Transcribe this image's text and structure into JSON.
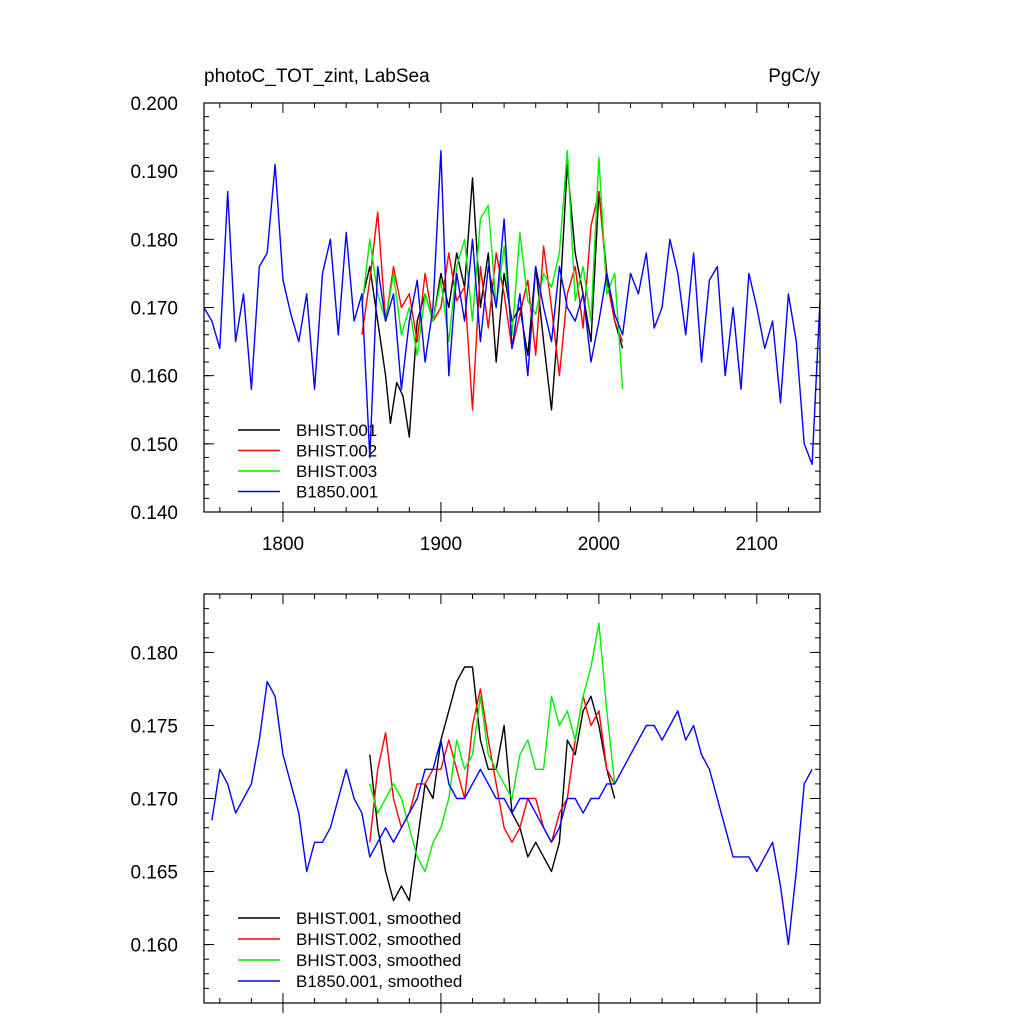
{
  "chart_data": [
    {
      "type": "line",
      "title": "photoC_TOT_zint, LabSea",
      "units": "PgC/y",
      "xlim": [
        1750,
        2140
      ],
      "ylim": [
        0.14,
        0.2
      ],
      "x_ticks": [
        1800,
        1900,
        2000,
        2100
      ],
      "y_ticks": [
        0.14,
        0.15,
        0.16,
        0.17,
        0.18,
        0.19,
        0.2
      ],
      "x_tick_labels": [
        "1800",
        "1900",
        "2000",
        "2100"
      ],
      "y_tick_labels": [
        "0.140",
        "0.150",
        "0.160",
        "0.170",
        "0.180",
        "0.190",
        "0.200"
      ],
      "legend_position": "bottom-left",
      "series": [
        {
          "name": "BHIST.001",
          "color": "#000000",
          "x": [
            1850,
            1855,
            1860,
            1865,
            1868,
            1872,
            1876,
            1880,
            1885,
            1890,
            1895,
            1900,
            1905,
            1910,
            1915,
            1920,
            1925,
            1930,
            1935,
            1940,
            1945,
            1950,
            1955,
            1960,
            1965,
            1970,
            1975,
            1980,
            1985,
            1990,
            1995,
            2000,
            2005,
            2010,
            2015
          ],
          "y": [
            0.171,
            0.176,
            0.168,
            0.16,
            0.153,
            0.159,
            0.157,
            0.151,
            0.168,
            0.172,
            0.168,
            0.175,
            0.17,
            0.178,
            0.173,
            0.189,
            0.17,
            0.178,
            0.162,
            0.175,
            0.168,
            0.17,
            0.163,
            0.176,
            0.165,
            0.155,
            0.17,
            0.191,
            0.178,
            0.172,
            0.165,
            0.187,
            0.175,
            0.168,
            0.164
          ]
        },
        {
          "name": "BHIST.002",
          "color": "#ff0000",
          "x": [
            1850,
            1855,
            1860,
            1865,
            1870,
            1875,
            1880,
            1885,
            1890,
            1895,
            1900,
            1905,
            1910,
            1915,
            1920,
            1925,
            1930,
            1935,
            1940,
            1945,
            1950,
            1955,
            1960,
            1965,
            1970,
            1975,
            1980,
            1985,
            1990,
            1995,
            2000,
            2005,
            2010,
            2015
          ],
          "y": [
            0.166,
            0.174,
            0.184,
            0.168,
            0.176,
            0.17,
            0.172,
            0.165,
            0.175,
            0.168,
            0.17,
            0.178,
            0.171,
            0.173,
            0.155,
            0.176,
            0.167,
            0.178,
            0.172,
            0.164,
            0.169,
            0.174,
            0.163,
            0.179,
            0.17,
            0.16,
            0.172,
            0.176,
            0.167,
            0.182,
            0.187,
            0.174,
            0.168,
            0.165
          ]
        },
        {
          "name": "BHIST.003",
          "color": "#00ee00",
          "x": [
            1850,
            1855,
            1860,
            1865,
            1870,
            1875,
            1880,
            1885,
            1890,
            1895,
            1900,
            1905,
            1910,
            1915,
            1920,
            1925,
            1930,
            1935,
            1940,
            1945,
            1950,
            1955,
            1960,
            1965,
            1970,
            1975,
            1980,
            1985,
            1990,
            1995,
            2000,
            2005,
            2010,
            2015
          ],
          "y": [
            0.17,
            0.18,
            0.172,
            0.168,
            0.175,
            0.166,
            0.17,
            0.163,
            0.172,
            0.168,
            0.174,
            0.165,
            0.176,
            0.18,
            0.168,
            0.183,
            0.185,
            0.17,
            0.179,
            0.166,
            0.181,
            0.171,
            0.169,
            0.175,
            0.173,
            0.178,
            0.193,
            0.171,
            0.176,
            0.168,
            0.192,
            0.172,
            0.175,
            0.158
          ]
        },
        {
          "name": "B1850.001",
          "color": "#0000ff",
          "x": [
            1750,
            1755,
            1760,
            1765,
            1770,
            1775,
            1780,
            1785,
            1790,
            1795,
            1800,
            1805,
            1810,
            1815,
            1820,
            1825,
            1830,
            1835,
            1840,
            1845,
            1850,
            1855,
            1860,
            1865,
            1870,
            1875,
            1880,
            1885,
            1890,
            1895,
            1900,
            1905,
            1910,
            1915,
            1920,
            1925,
            1930,
            1935,
            1940,
            1945,
            1950,
            1955,
            1960,
            1965,
            1970,
            1975,
            1980,
            1985,
            1990,
            1995,
            2000,
            2005,
            2010,
            2015,
            2020,
            2025,
            2030,
            2035,
            2040,
            2045,
            2050,
            2055,
            2060,
            2065,
            2070,
            2075,
            2080,
            2085,
            2090,
            2095,
            2100,
            2105,
            2110,
            2115,
            2120,
            2125,
            2130,
            2135,
            2140
          ],
          "y": [
            0.17,
            0.168,
            0.164,
            0.187,
            0.165,
            0.172,
            0.158,
            0.176,
            0.178,
            0.191,
            0.174,
            0.169,
            0.165,
            0.172,
            0.158,
            0.175,
            0.18,
            0.166,
            0.181,
            0.168,
            0.172,
            0.148,
            0.176,
            0.168,
            0.172,
            0.158,
            0.168,
            0.174,
            0.162,
            0.17,
            0.193,
            0.16,
            0.175,
            0.168,
            0.18,
            0.165,
            0.176,
            0.17,
            0.183,
            0.164,
            0.172,
            0.16,
            0.176,
            0.17,
            0.165,
            0.176,
            0.17,
            0.168,
            0.172,
            0.162,
            0.168,
            0.175,
            0.169,
            0.166,
            0.175,
            0.172,
            0.178,
            0.167,
            0.17,
            0.18,
            0.175,
            0.166,
            0.178,
            0.162,
            0.174,
            0.176,
            0.16,
            0.17,
            0.158,
            0.175,
            0.17,
            0.164,
            0.168,
            0.156,
            0.172,
            0.165,
            0.15,
            0.147,
            0.171
          ]
        }
      ]
    },
    {
      "type": "line",
      "xlim": [
        1750,
        2140
      ],
      "ylim": [
        0.156,
        0.184
      ],
      "x_ticks": [
        1800,
        1900,
        2000,
        2100
      ],
      "y_ticks": [
        0.16,
        0.165,
        0.17,
        0.175,
        0.18
      ],
      "y_tick_labels": [
        "0.160",
        "0.165",
        "0.170",
        "0.175",
        "0.180"
      ],
      "legend_position": "bottom-left",
      "series": [
        {
          "name": "BHIST.001, smoothed",
          "color": "#000000",
          "x": [
            1855,
            1860,
            1865,
            1870,
            1875,
            1880,
            1885,
            1890,
            1895,
            1900,
            1905,
            1910,
            1915,
            1920,
            1925,
            1930,
            1935,
            1940,
            1945,
            1950,
            1955,
            1960,
            1965,
            1970,
            1975,
            1980,
            1985,
            1990,
            1995,
            2000,
            2005,
            2010
          ],
          "y": [
            0.173,
            0.168,
            0.165,
            0.163,
            0.164,
            0.163,
            0.167,
            0.171,
            0.17,
            0.174,
            0.176,
            0.178,
            0.179,
            0.179,
            0.174,
            0.172,
            0.172,
            0.175,
            0.169,
            0.168,
            0.166,
            0.167,
            0.166,
            0.165,
            0.167,
            0.174,
            0.173,
            0.176,
            0.177,
            0.175,
            0.172,
            0.17
          ]
        },
        {
          "name": "BHIST.002, smoothed",
          "color": "#ff0000",
          "x": [
            1855,
            1860,
            1865,
            1870,
            1875,
            1880,
            1885,
            1890,
            1895,
            1900,
            1905,
            1910,
            1915,
            1920,
            1925,
            1930,
            1935,
            1940,
            1945,
            1950,
            1955,
            1960,
            1965,
            1970,
            1975,
            1980,
            1985,
            1990,
            1995,
            2000,
            2005,
            2010
          ],
          "y": [
            0.167,
            0.172,
            0.1745,
            0.17,
            0.168,
            0.169,
            0.171,
            0.171,
            0.172,
            0.172,
            0.174,
            0.172,
            0.17,
            0.175,
            0.1775,
            0.174,
            0.171,
            0.168,
            0.167,
            0.168,
            0.17,
            0.17,
            0.168,
            0.167,
            0.169,
            0.17,
            0.174,
            0.177,
            0.175,
            0.176,
            0.172,
            0.171
          ]
        },
        {
          "name": "BHIST.003, smoothed",
          "color": "#00ee00",
          "x": [
            1855,
            1860,
            1865,
            1870,
            1875,
            1880,
            1885,
            1890,
            1895,
            1900,
            1905,
            1910,
            1915,
            1920,
            1925,
            1930,
            1935,
            1940,
            1945,
            1950,
            1955,
            1960,
            1965,
            1970,
            1975,
            1980,
            1985,
            1990,
            1995,
            2000,
            2005,
            2010
          ],
          "y": [
            0.171,
            0.169,
            0.17,
            0.171,
            0.17,
            0.168,
            0.166,
            0.165,
            0.167,
            0.168,
            0.17,
            0.174,
            0.172,
            0.173,
            0.177,
            0.173,
            0.172,
            0.171,
            0.17,
            0.173,
            0.174,
            0.172,
            0.172,
            0.177,
            0.175,
            0.176,
            0.174,
            0.177,
            0.179,
            0.182,
            0.176,
            0.171
          ]
        },
        {
          "name": "B1850.001, smoothed",
          "color": "#0000ff",
          "x": [
            1755,
            1760,
            1765,
            1770,
            1775,
            1780,
            1785,
            1790,
            1795,
            1800,
            1805,
            1810,
            1815,
            1820,
            1825,
            1830,
            1835,
            1840,
            1845,
            1850,
            1855,
            1860,
            1865,
            1870,
            1875,
            1880,
            1885,
            1890,
            1895,
            1900,
            1905,
            1910,
            1915,
            1920,
            1925,
            1930,
            1935,
            1940,
            1945,
            1950,
            1955,
            1960,
            1965,
            1970,
            1975,
            1980,
            1985,
            1990,
            1995,
            2000,
            2005,
            2010,
            2015,
            2020,
            2025,
            2030,
            2035,
            2040,
            2045,
            2050,
            2055,
            2060,
            2065,
            2070,
            2075,
            2080,
            2085,
            2090,
            2095,
            2100,
            2105,
            2110,
            2115,
            2120,
            2125,
            2130,
            2135
          ],
          "y": [
            0.1685,
            0.172,
            0.171,
            0.169,
            0.17,
            0.171,
            0.174,
            0.178,
            0.177,
            0.173,
            0.171,
            0.169,
            0.165,
            0.167,
            0.167,
            0.168,
            0.17,
            0.172,
            0.17,
            0.169,
            0.166,
            0.167,
            0.168,
            0.167,
            0.168,
            0.169,
            0.17,
            0.172,
            0.172,
            0.174,
            0.171,
            0.17,
            0.17,
            0.171,
            0.172,
            0.171,
            0.17,
            0.17,
            0.169,
            0.17,
            0.17,
            0.169,
            0.168,
            0.167,
            0.168,
            0.17,
            0.17,
            0.169,
            0.17,
            0.17,
            0.171,
            0.171,
            0.172,
            0.173,
            0.174,
            0.175,
            0.175,
            0.174,
            0.175,
            0.176,
            0.174,
            0.175,
            0.173,
            0.172,
            0.17,
            0.168,
            0.166,
            0.166,
            0.166,
            0.165,
            0.166,
            0.167,
            0.164,
            0.16,
            0.165,
            0.171,
            0.172
          ]
        }
      ]
    }
  ]
}
